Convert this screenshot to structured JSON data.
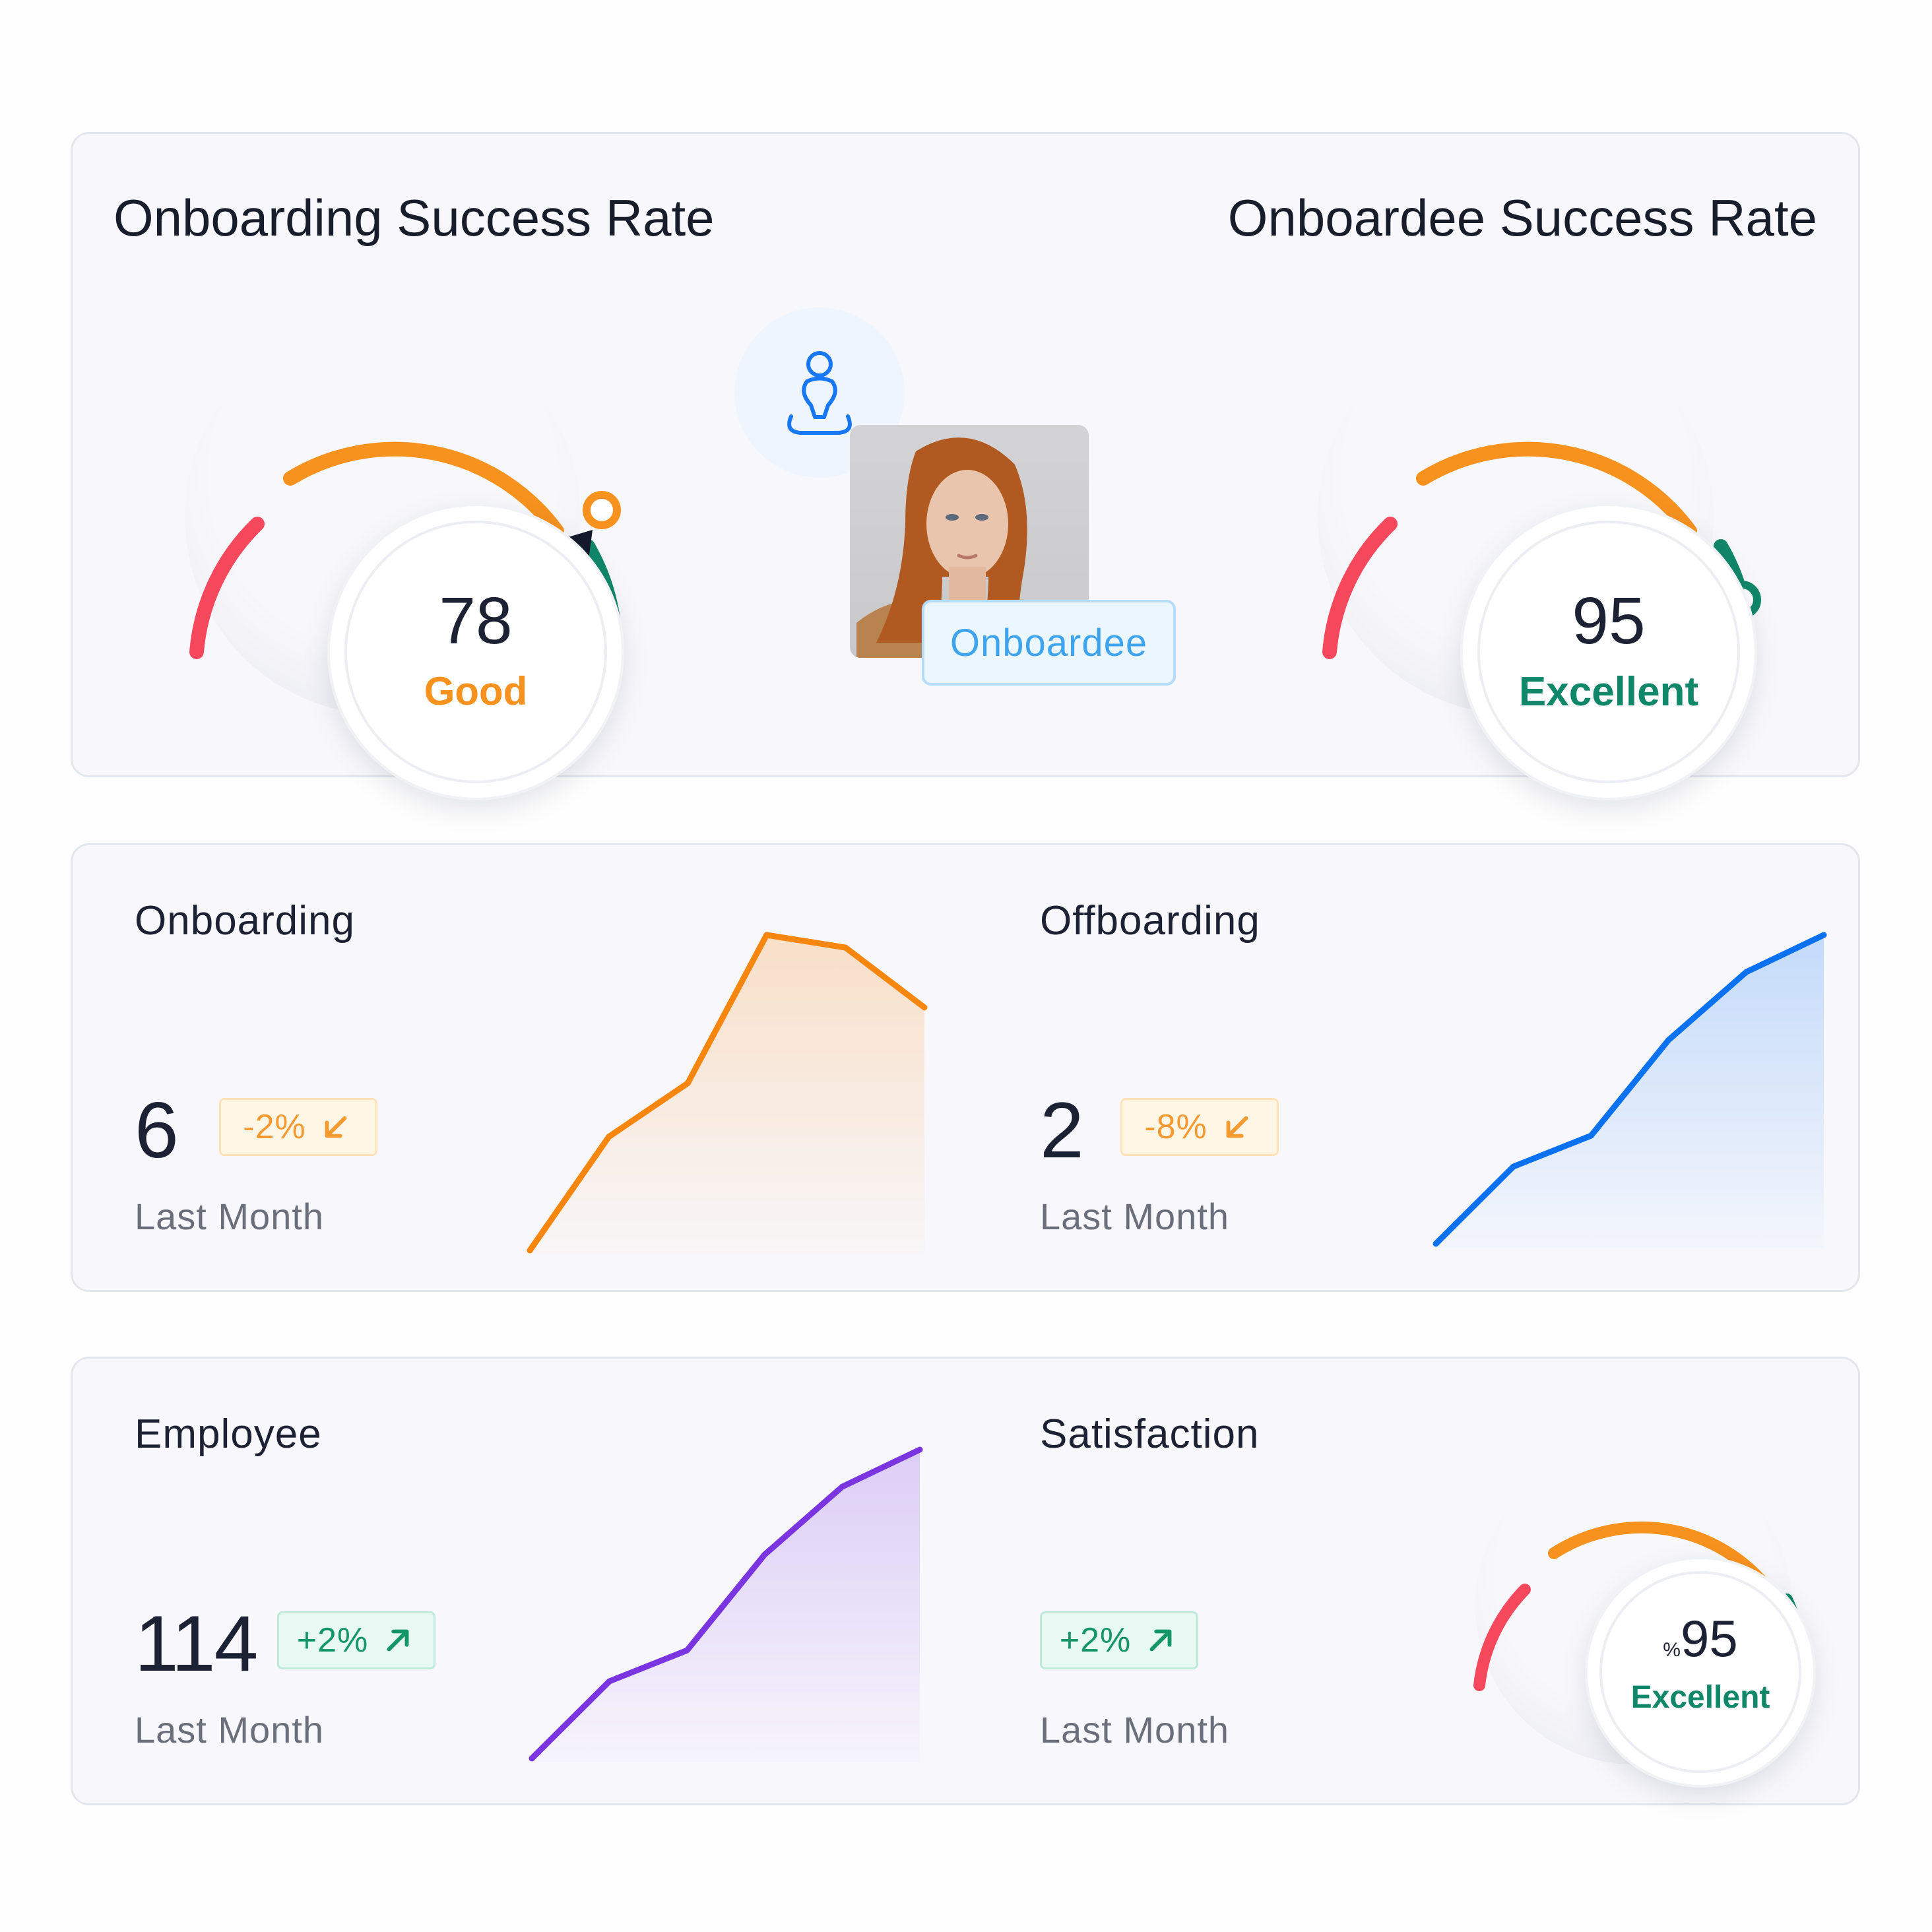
{
  "top_card": {
    "left_title": "Onboarding Success Rate",
    "right_title": "Onboardee Success Rate",
    "left_gauge": {
      "value": "78",
      "label": "Good",
      "label_color": "#f7921e",
      "score": 0.78
    },
    "right_gauge": {
      "value": "95",
      "label": "Excellent",
      "label_color": "#11876a",
      "score": 0.95
    },
    "onboardee_tag": "Onboardee",
    "icons": {
      "person": "person-meditation-icon",
      "photo": "onboardee-photo"
    }
  },
  "middle_card": {
    "onboarding": {
      "title": "Onboarding",
      "value": "6",
      "change": "-2%",
      "trend": "down",
      "period": "Last Month",
      "chart_data": {
        "type": "area",
        "color": "#f7860e",
        "values": [
          0,
          36,
          53,
          100,
          96,
          77
        ]
      }
    },
    "offboarding": {
      "title": "Offboarding",
      "value": "2",
      "change": "-8%",
      "trend": "down",
      "period": "Last Month",
      "chart_data": {
        "type": "area",
        "color": "#0a72f0",
        "values": [
          0,
          25,
          35,
          66,
          88,
          100
        ]
      }
    }
  },
  "bottom_card": {
    "employee": {
      "title": "Employee",
      "value": "114",
      "change": "+2%",
      "trend": "up",
      "period": "Last Month",
      "chart_data": {
        "type": "area",
        "color": "#7a35e0",
        "values": [
          0,
          25,
          35,
          66,
          88,
          100
        ]
      }
    },
    "satisfaction": {
      "title": "Satisfaction",
      "change": "+2%",
      "trend": "up",
      "period": "Last Month",
      "gauge": {
        "prefix": "%",
        "value": "95",
        "label": "Excellent",
        "label_color": "#11876a",
        "score": 0.95
      }
    }
  },
  "colors": {
    "red": "#f6485d",
    "orange": "#f7921e",
    "green": "#11876a",
    "pointer": "#141a2b"
  }
}
